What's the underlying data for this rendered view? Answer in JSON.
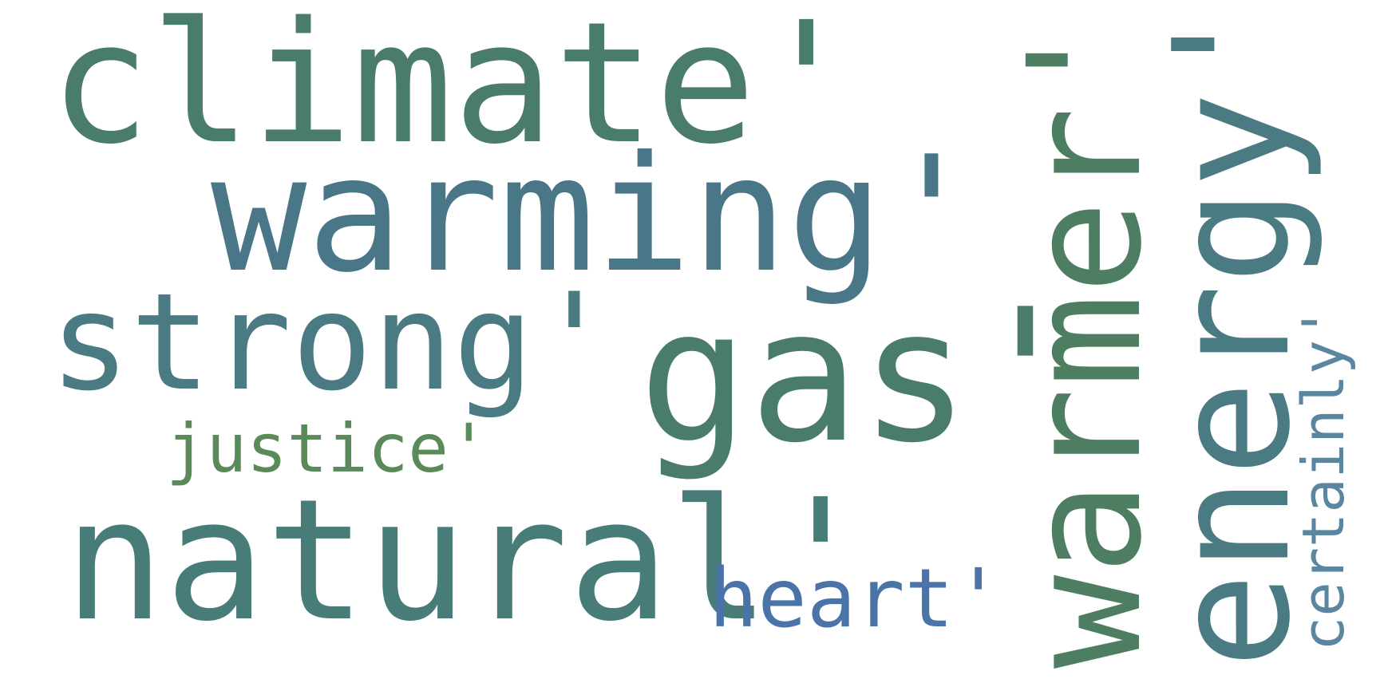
{
  "words": [
    {
      "text": "climate'",
      "color": "#4a7c6a"
    },
    {
      "text": "warming'",
      "color": "#4a7788"
    },
    {
      "text": "strong'",
      "color": "#4a7a82"
    },
    {
      "text": "gas'",
      "color": "#4a7c6a"
    },
    {
      "text": "justice'",
      "color": "#5a8a5a"
    },
    {
      "text": "natural'",
      "color": "#487c78"
    },
    {
      "text": "heart'",
      "color": "#4a73a8"
    },
    {
      "text": "warmer'",
      "color": "#4e7e62"
    },
    {
      "text": "energy'",
      "color": "#4a7a82"
    },
    {
      "text": "certainly'",
      "color": "#5a86a0"
    }
  ]
}
